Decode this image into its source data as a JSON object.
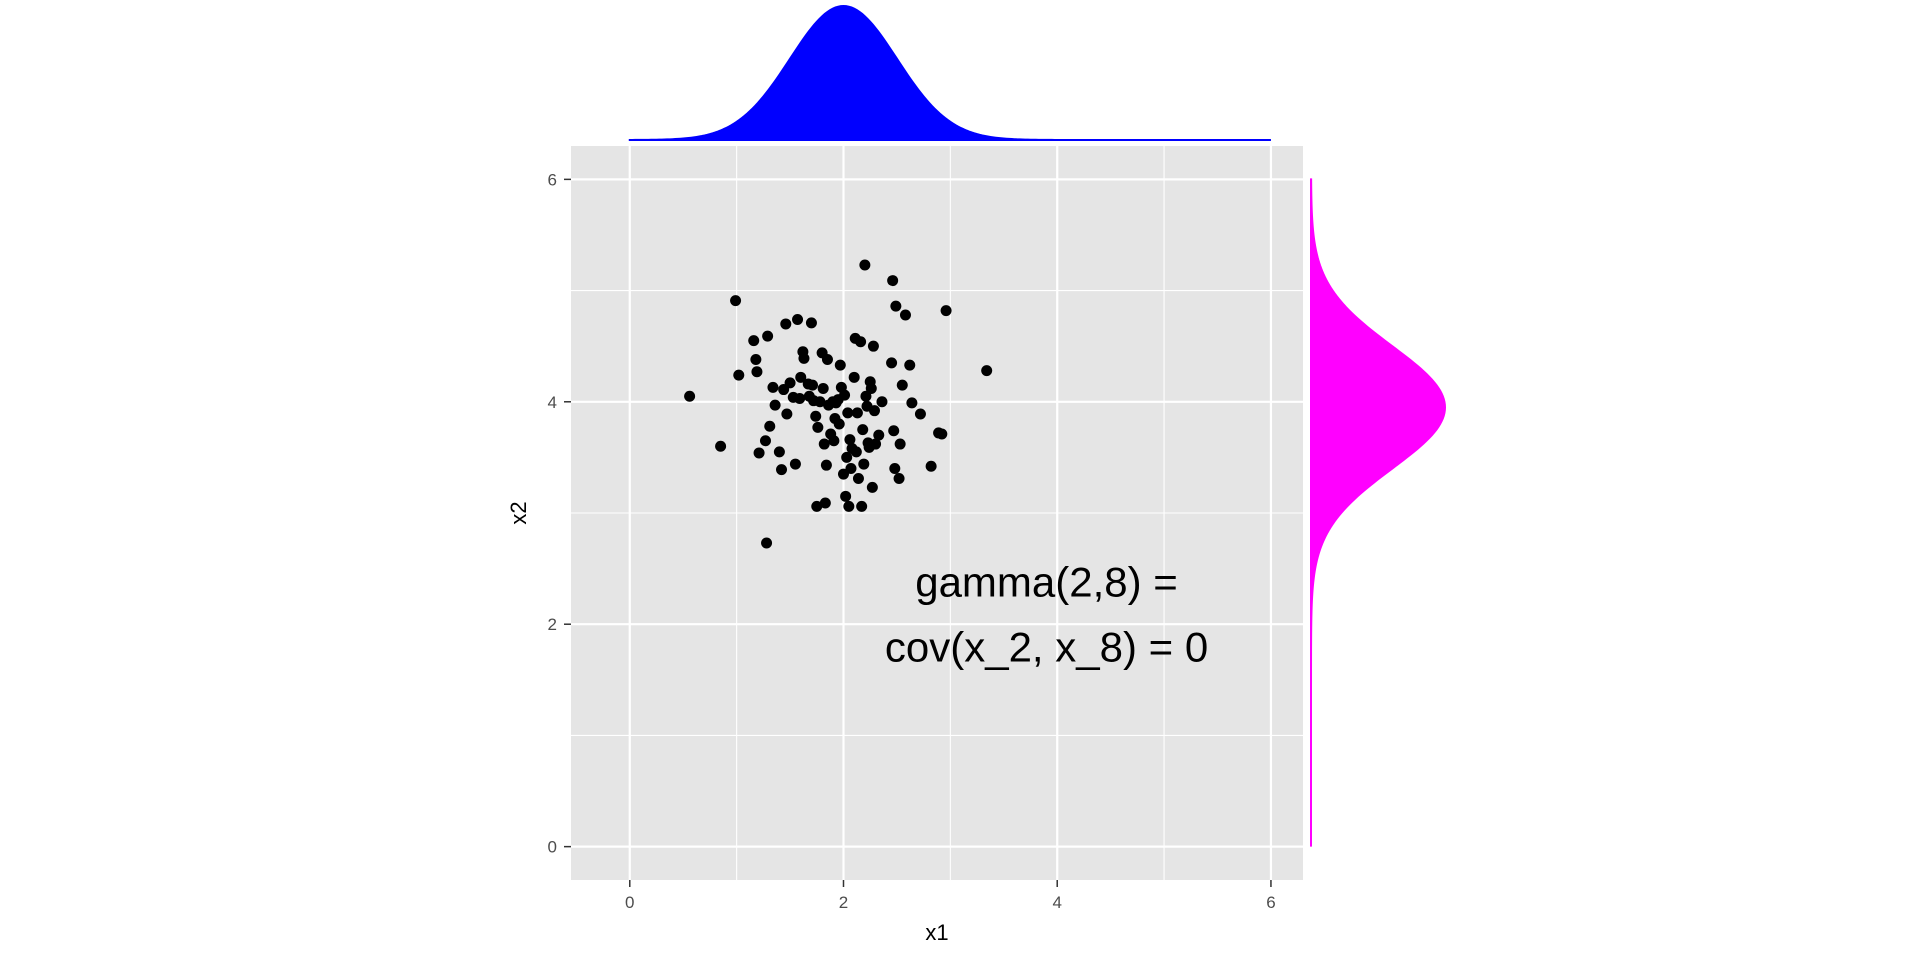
{
  "chart_data": {
    "type": "scatter",
    "xlabel": "x1",
    "ylabel": "x2",
    "xlim": [
      -0.55,
      6.3
    ],
    "ylim": [
      -0.3,
      6.3
    ],
    "x_ticks": [
      0,
      2,
      4,
      6
    ],
    "y_ticks": [
      0,
      2,
      4,
      6
    ],
    "grid": true,
    "panel_background": "#e5e5e5",
    "grid_color": "#ffffff",
    "point_color": "#000000",
    "annotation": {
      "lines": [
        "gamma(2,8) =",
        "cov(x_2, x_8) = 0"
      ],
      "x": 3.9,
      "y": 2.25
    },
    "points": [
      [
        0.56,
        4.05
      ],
      [
        0.85,
        3.6
      ],
      [
        0.99,
        4.91
      ],
      [
        1.02,
        4.24
      ],
      [
        1.16,
        4.55
      ],
      [
        1.18,
        4.38
      ],
      [
        1.19,
        4.27
      ],
      [
        1.21,
        3.54
      ],
      [
        1.27,
        3.65
      ],
      [
        1.28,
        2.73
      ],
      [
        1.29,
        4.59
      ],
      [
        1.31,
        3.78
      ],
      [
        1.34,
        4.13
      ],
      [
        1.36,
        3.97
      ],
      [
        1.4,
        3.55
      ],
      [
        1.42,
        3.39
      ],
      [
        1.44,
        4.11
      ],
      [
        1.46,
        4.7
      ],
      [
        1.47,
        3.89
      ],
      [
        1.5,
        4.17
      ],
      [
        1.55,
        3.44
      ],
      [
        1.57,
        4.74
      ],
      [
        1.59,
        4.03
      ],
      [
        1.6,
        4.22
      ],
      [
        1.62,
        4.45
      ],
      [
        1.63,
        4.39
      ],
      [
        1.68,
        4.05
      ],
      [
        1.7,
        4.71
      ],
      [
        1.71,
        4.15
      ],
      [
        1.72,
        4.01
      ],
      [
        1.75,
        3.06
      ],
      [
        1.76,
        3.77
      ],
      [
        1.78,
        4.0
      ],
      [
        1.8,
        4.44
      ],
      [
        1.81,
        4.12
      ],
      [
        1.82,
        3.62
      ],
      [
        1.83,
        3.09
      ],
      [
        1.84,
        3.43
      ],
      [
        1.85,
        4.38
      ],
      [
        1.86,
        3.97
      ],
      [
        1.88,
        3.71
      ],
      [
        1.9,
        4.0
      ],
      [
        1.92,
        3.85
      ],
      [
        1.95,
        4.02
      ],
      [
        1.96,
        3.8
      ],
      [
        1.97,
        4.33
      ],
      [
        1.98,
        4.13
      ],
      [
        2.0,
        3.35
      ],
      [
        2.01,
        4.06
      ],
      [
        2.02,
        3.15
      ],
      [
        2.03,
        3.5
      ],
      [
        2.04,
        3.9
      ],
      [
        2.05,
        3.06
      ],
      [
        2.06,
        3.66
      ],
      [
        2.07,
        3.4
      ],
      [
        2.08,
        3.58
      ],
      [
        2.1,
        4.22
      ],
      [
        2.11,
        4.57
      ],
      [
        2.12,
        3.55
      ],
      [
        2.14,
        3.31
      ],
      [
        2.16,
        4.54
      ],
      [
        2.17,
        3.06
      ],
      [
        2.18,
        3.75
      ],
      [
        2.19,
        3.44
      ],
      [
        2.2,
        5.23
      ],
      [
        2.21,
        4.05
      ],
      [
        2.22,
        3.96
      ],
      [
        2.23,
        3.63
      ],
      [
        2.24,
        3.59
      ],
      [
        2.25,
        4.18
      ],
      [
        2.27,
        3.23
      ],
      [
        2.28,
        4.5
      ],
      [
        2.29,
        3.92
      ],
      [
        2.3,
        3.62
      ],
      [
        2.33,
        3.7
      ],
      [
        2.45,
        4.35
      ],
      [
        2.46,
        5.09
      ],
      [
        2.47,
        3.74
      ],
      [
        2.48,
        3.4
      ],
      [
        2.49,
        4.86
      ],
      [
        2.52,
        3.31
      ],
      [
        2.53,
        3.62
      ],
      [
        2.55,
        4.15
      ],
      [
        2.58,
        4.78
      ],
      [
        2.62,
        4.33
      ],
      [
        2.64,
        3.99
      ],
      [
        2.72,
        3.89
      ],
      [
        2.82,
        3.42
      ],
      [
        2.89,
        3.72
      ],
      [
        2.92,
        3.71
      ],
      [
        2.96,
        4.82
      ],
      [
        3.34,
        4.28
      ],
      [
        1.67,
        4.16
      ],
      [
        1.93,
        3.99
      ],
      [
        2.13,
        3.9
      ],
      [
        1.74,
        3.87
      ],
      [
        2.26,
        4.12
      ],
      [
        1.53,
        4.04
      ],
      [
        2.36,
        4.0
      ],
      [
        1.91,
        3.65
      ]
    ],
    "marginal_x": {
      "distribution": "normal",
      "mean": 2.0,
      "sd": 0.5,
      "range": [
        0,
        6
      ],
      "color": "#0000ff"
    },
    "marginal_y": {
      "distribution": "normal",
      "mean": 3.95,
      "sd": 0.55,
      "range": [
        0,
        6
      ],
      "color": "#ff00ff"
    }
  }
}
